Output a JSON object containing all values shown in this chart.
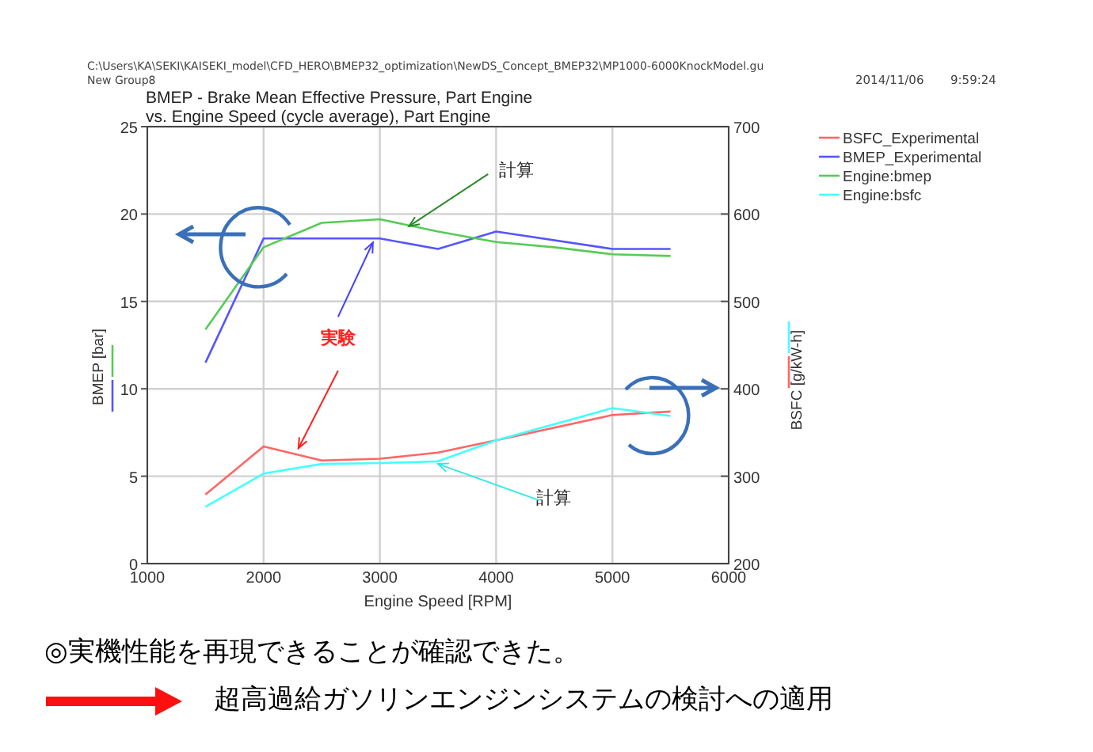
{
  "chart_data": {
    "type": "line",
    "title": "BMEP - Brake Mean Effective Pressure, Part Engine",
    "subtitle": "vs. Engine Speed (cycle average), Part Engine",
    "xlabel": "Engine Speed [RPM]",
    "ylabel": "BMEP [bar]",
    "y2label": "BSFC [g/kW-h]",
    "xlim": [
      1000,
      6000
    ],
    "xticks": [
      1000,
      2000,
      3000,
      4000,
      5000,
      6000
    ],
    "ylim": [
      0,
      25
    ],
    "yticks": [
      0,
      5,
      10,
      15,
      20,
      25
    ],
    "y2lim": [
      200,
      700
    ],
    "y2ticks": [
      200,
      300,
      400,
      500,
      600,
      700
    ],
    "grid": true,
    "legend": "top right",
    "marker": "none",
    "line_style": "solid",
    "series": [
      {
        "name": "BSFC_Experimental",
        "color": "#ff6666",
        "axis": "y2",
        "x": [
          1500,
          2000,
          2500,
          3000,
          3500,
          4000,
          5000,
          5500
        ],
        "values": [
          279,
          334,
          318,
          320,
          327,
          341,
          370,
          374
        ]
      },
      {
        "name": "BMEP_Experimental",
        "color": "#5555ff",
        "x": [
          1500,
          2000,
          3000,
          3500,
          4000,
          5000,
          5500
        ],
        "values": [
          11.5,
          18.6,
          18.6,
          18.0,
          19.0,
          18.0,
          18.0
        ]
      },
      {
        "name": "Engine:bmep",
        "color": "#55cc55",
        "x": [
          1500,
          2000,
          2500,
          3000,
          3500,
          4000,
          4500,
          5000,
          5500
        ],
        "values": [
          13.4,
          18.1,
          19.5,
          19.7,
          19.0,
          18.4,
          18.1,
          17.7,
          17.6
        ]
      },
      {
        "name": "Engine:bsfc",
        "color": "#44ffff",
        "axis": "y2",
        "x": [
          1500,
          2000,
          2500,
          3000,
          3500,
          4000,
          5000,
          5500
        ],
        "values": [
          265,
          303,
          314,
          315,
          317,
          341,
          378,
          369
        ]
      }
    ],
    "annotations": [
      "C:\\Users\\KA\\SEKI\\KAISEKI_model\\CFD_HERO\\BMEP32_optimization\\NewDS_Concept_BMEP32\\MP1000-6000KnockModel.gu",
      "New Group8",
      "2014/11/06",
      "9:59:24",
      {
        "text": "計算",
        "x": 3250,
        "y": 19.3
      },
      {
        "text": "実験",
        "x": 2300,
        "y": 6.6
      },
      {
        "text": "計算",
        "x": 3500,
        "y": 5.7
      },
      "◎実機性能を再現できることが確認できた。",
      "超高過給ガソリンエンジンシステムの検討への適用"
    ]
  }
}
